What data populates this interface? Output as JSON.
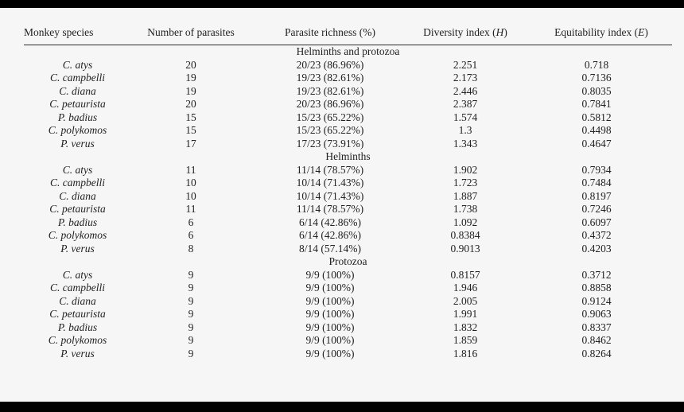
{
  "colors": {
    "bg": "#f6f6f6",
    "bar": "#000000",
    "ink": "#222222",
    "rule": "#2b2b2b"
  },
  "table": {
    "columns": [
      {
        "key": "species",
        "pre": "Monkey species",
        "italic": "",
        "post": ""
      },
      {
        "key": "number",
        "pre": "Number of parasites",
        "italic": "",
        "post": ""
      },
      {
        "key": "richness",
        "pre": "Parasite richness (%)",
        "italic": "",
        "post": ""
      },
      {
        "key": "diversity",
        "pre": "Diversity index (",
        "italic": "H",
        "post": ")"
      },
      {
        "key": "equitability",
        "pre": "Equitability index (",
        "italic": "E",
        "post": ")"
      }
    ],
    "sections": [
      {
        "label": "Helminths and protozoa",
        "rows": [
          {
            "species": "C. atys",
            "number": "20",
            "richness": "20/23 (86.96%)",
            "diversity": "2.251",
            "equitability": "0.718"
          },
          {
            "species": "C. campbelli",
            "number": "19",
            "richness": "19/23 (82.61%)",
            "diversity": "2.173",
            "equitability": "0.7136"
          },
          {
            "species": "C. diana",
            "number": "19",
            "richness": "19/23 (82.61%)",
            "diversity": "2.446",
            "equitability": "0.8035"
          },
          {
            "species": "C. petaurista",
            "number": "20",
            "richness": "20/23 (86.96%)",
            "diversity": "2.387",
            "equitability": "0.7841"
          },
          {
            "species": "P. badius",
            "number": "15",
            "richness": "15/23 (65.22%)",
            "diversity": "1.574",
            "equitability": "0.5812"
          },
          {
            "species": "C. polykomos",
            "number": "15",
            "richness": "15/23 (65.22%)",
            "diversity": "1.3",
            "equitability": "0.4498"
          },
          {
            "species": "P. verus",
            "number": "17",
            "richness": "17/23 (73.91%)",
            "diversity": "1.343",
            "equitability": "0.4647"
          }
        ]
      },
      {
        "label": "Helminths",
        "rows": [
          {
            "species": "C. atys",
            "number": "11",
            "richness": "11/14 (78.57%)",
            "diversity": "1.902",
            "equitability": "0.7934"
          },
          {
            "species": "C. campbelli",
            "number": "10",
            "richness": "10/14 (71.43%)",
            "diversity": "1.723",
            "equitability": "0.7484"
          },
          {
            "species": "C. diana",
            "number": "10",
            "richness": "10/14 (71.43%)",
            "diversity": "1.887",
            "equitability": "0.8197"
          },
          {
            "species": "C. petaurista",
            "number": "11",
            "richness": "11/14 (78.57%)",
            "diversity": "1.738",
            "equitability": "0.7246"
          },
          {
            "species": "P. badius",
            "number": "6",
            "richness": "6/14 (42.86%)",
            "diversity": "1.092",
            "equitability": "0.6097"
          },
          {
            "species": "C. polykomos",
            "number": "6",
            "richness": "6/14 (42.86%)",
            "diversity": "0.8384",
            "equitability": "0.4372"
          },
          {
            "species": "P. verus",
            "number": "8",
            "richness": "8/14 (57.14%)",
            "diversity": "0.9013",
            "equitability": "0.4203"
          }
        ]
      },
      {
        "label": "Protozoa",
        "rows": [
          {
            "species": "C. atys",
            "number": "9",
            "richness": "9/9 (100%)",
            "diversity": "0.8157",
            "equitability": "0.3712"
          },
          {
            "species": "C. campbelli",
            "number": "9",
            "richness": "9/9 (100%)",
            "diversity": "1.946",
            "equitability": "0.8858"
          },
          {
            "species": "C. diana",
            "number": "9",
            "richness": "9/9 (100%)",
            "diversity": "2.005",
            "equitability": "0.9124"
          },
          {
            "species": "C. petaurista",
            "number": "9",
            "richness": "9/9 (100%)",
            "diversity": "1.991",
            "equitability": "0.9063"
          },
          {
            "species": "P. badius",
            "number": "9",
            "richness": "9/9 (100%)",
            "diversity": "1.832",
            "equitability": "0.8337"
          },
          {
            "species": "C. polykomos",
            "number": "9",
            "richness": "9/9 (100%)",
            "diversity": "1.859",
            "equitability": "0.8462"
          },
          {
            "species": "P. verus",
            "number": "9",
            "richness": "9/9 (100%)",
            "diversity": "1.816",
            "equitability": "0.8264"
          }
        ]
      }
    ]
  }
}
